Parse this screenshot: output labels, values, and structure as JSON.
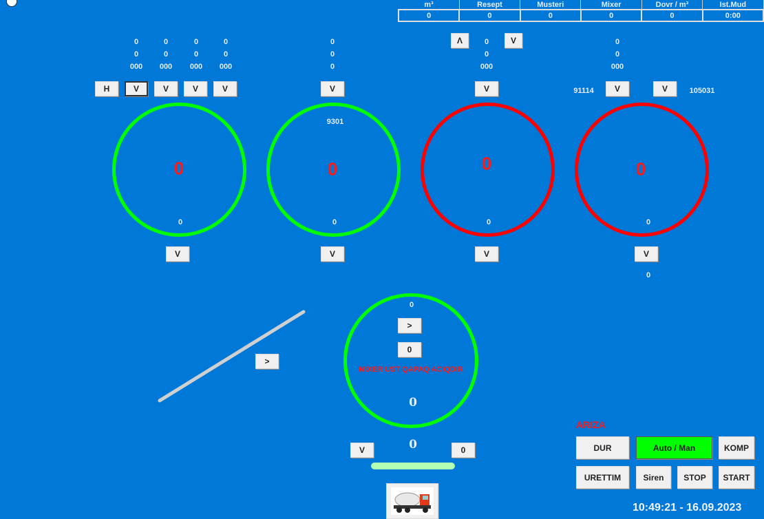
{
  "colors": {
    "background": "#0078d7",
    "ok_ring": "#00ff00",
    "alarm_ring": "#ff0000",
    "alert_text": "#ff1a1a",
    "auto_button": "#00ff00",
    "level_bar": "#b3ffb3"
  },
  "table": {
    "headers": [
      "m³",
      "Resept",
      "Musteri",
      "Mixer",
      "Dovr / m³",
      "Ist.Mud"
    ],
    "values": [
      "0",
      "0",
      "0",
      "0",
      "0",
      "0:00"
    ]
  },
  "bins": [
    {
      "cols": [
        [
          "0",
          "0",
          "000"
        ],
        [
          "0",
          "0",
          "000"
        ],
        [
          "0",
          "0",
          "000"
        ],
        [
          "0",
          "0",
          "000"
        ]
      ],
      "buttons": [
        "H",
        "V",
        "V",
        "V",
        "V"
      ],
      "center": "0",
      "bottom": "0",
      "lower_button": "V",
      "status": "green"
    },
    {
      "cols": [
        [
          "0",
          "0",
          "0"
        ]
      ],
      "buttons": [
        "V"
      ],
      "top": "9301",
      "center": "0",
      "bottom": "0",
      "lower_button": "V",
      "status": "green"
    },
    {
      "cols": [
        [
          "0",
          "0",
          "000"
        ]
      ],
      "up_button": "Λ",
      "down_button": "V",
      "buttons": [
        "V"
      ],
      "center": "0",
      "bottom": "0",
      "lower_button": "V",
      "status": "red"
    },
    {
      "cols": [
        [
          "0",
          "0",
          "000"
        ]
      ],
      "left_value": "91114",
      "right_value": "105031",
      "buttons": [
        "V",
        "V"
      ],
      "center": "0",
      "bottom": "0",
      "lower_button": "V",
      "below": "0",
      "status": "red"
    }
  ],
  "conveyor": {
    "button": ">"
  },
  "mixer": {
    "top": "0",
    "arrow_button": ">",
    "count_button": "0",
    "alert": "MIXER UST QAPAQ ACIQDIR",
    "center": "0",
    "below": "0",
    "left_button": "V",
    "right_button": "0",
    "truck_icon": "mixer-truck-icon"
  },
  "controls": {
    "alarm_label": "ARIZA",
    "dur": "DUR",
    "auto_man": "Auto / Man",
    "komp": "KOMP",
    "urettim": "URETTIM",
    "siren": "Siren",
    "stop": "STOP",
    "start": "START"
  },
  "clock": "10:49:21 - 16.09.2023"
}
